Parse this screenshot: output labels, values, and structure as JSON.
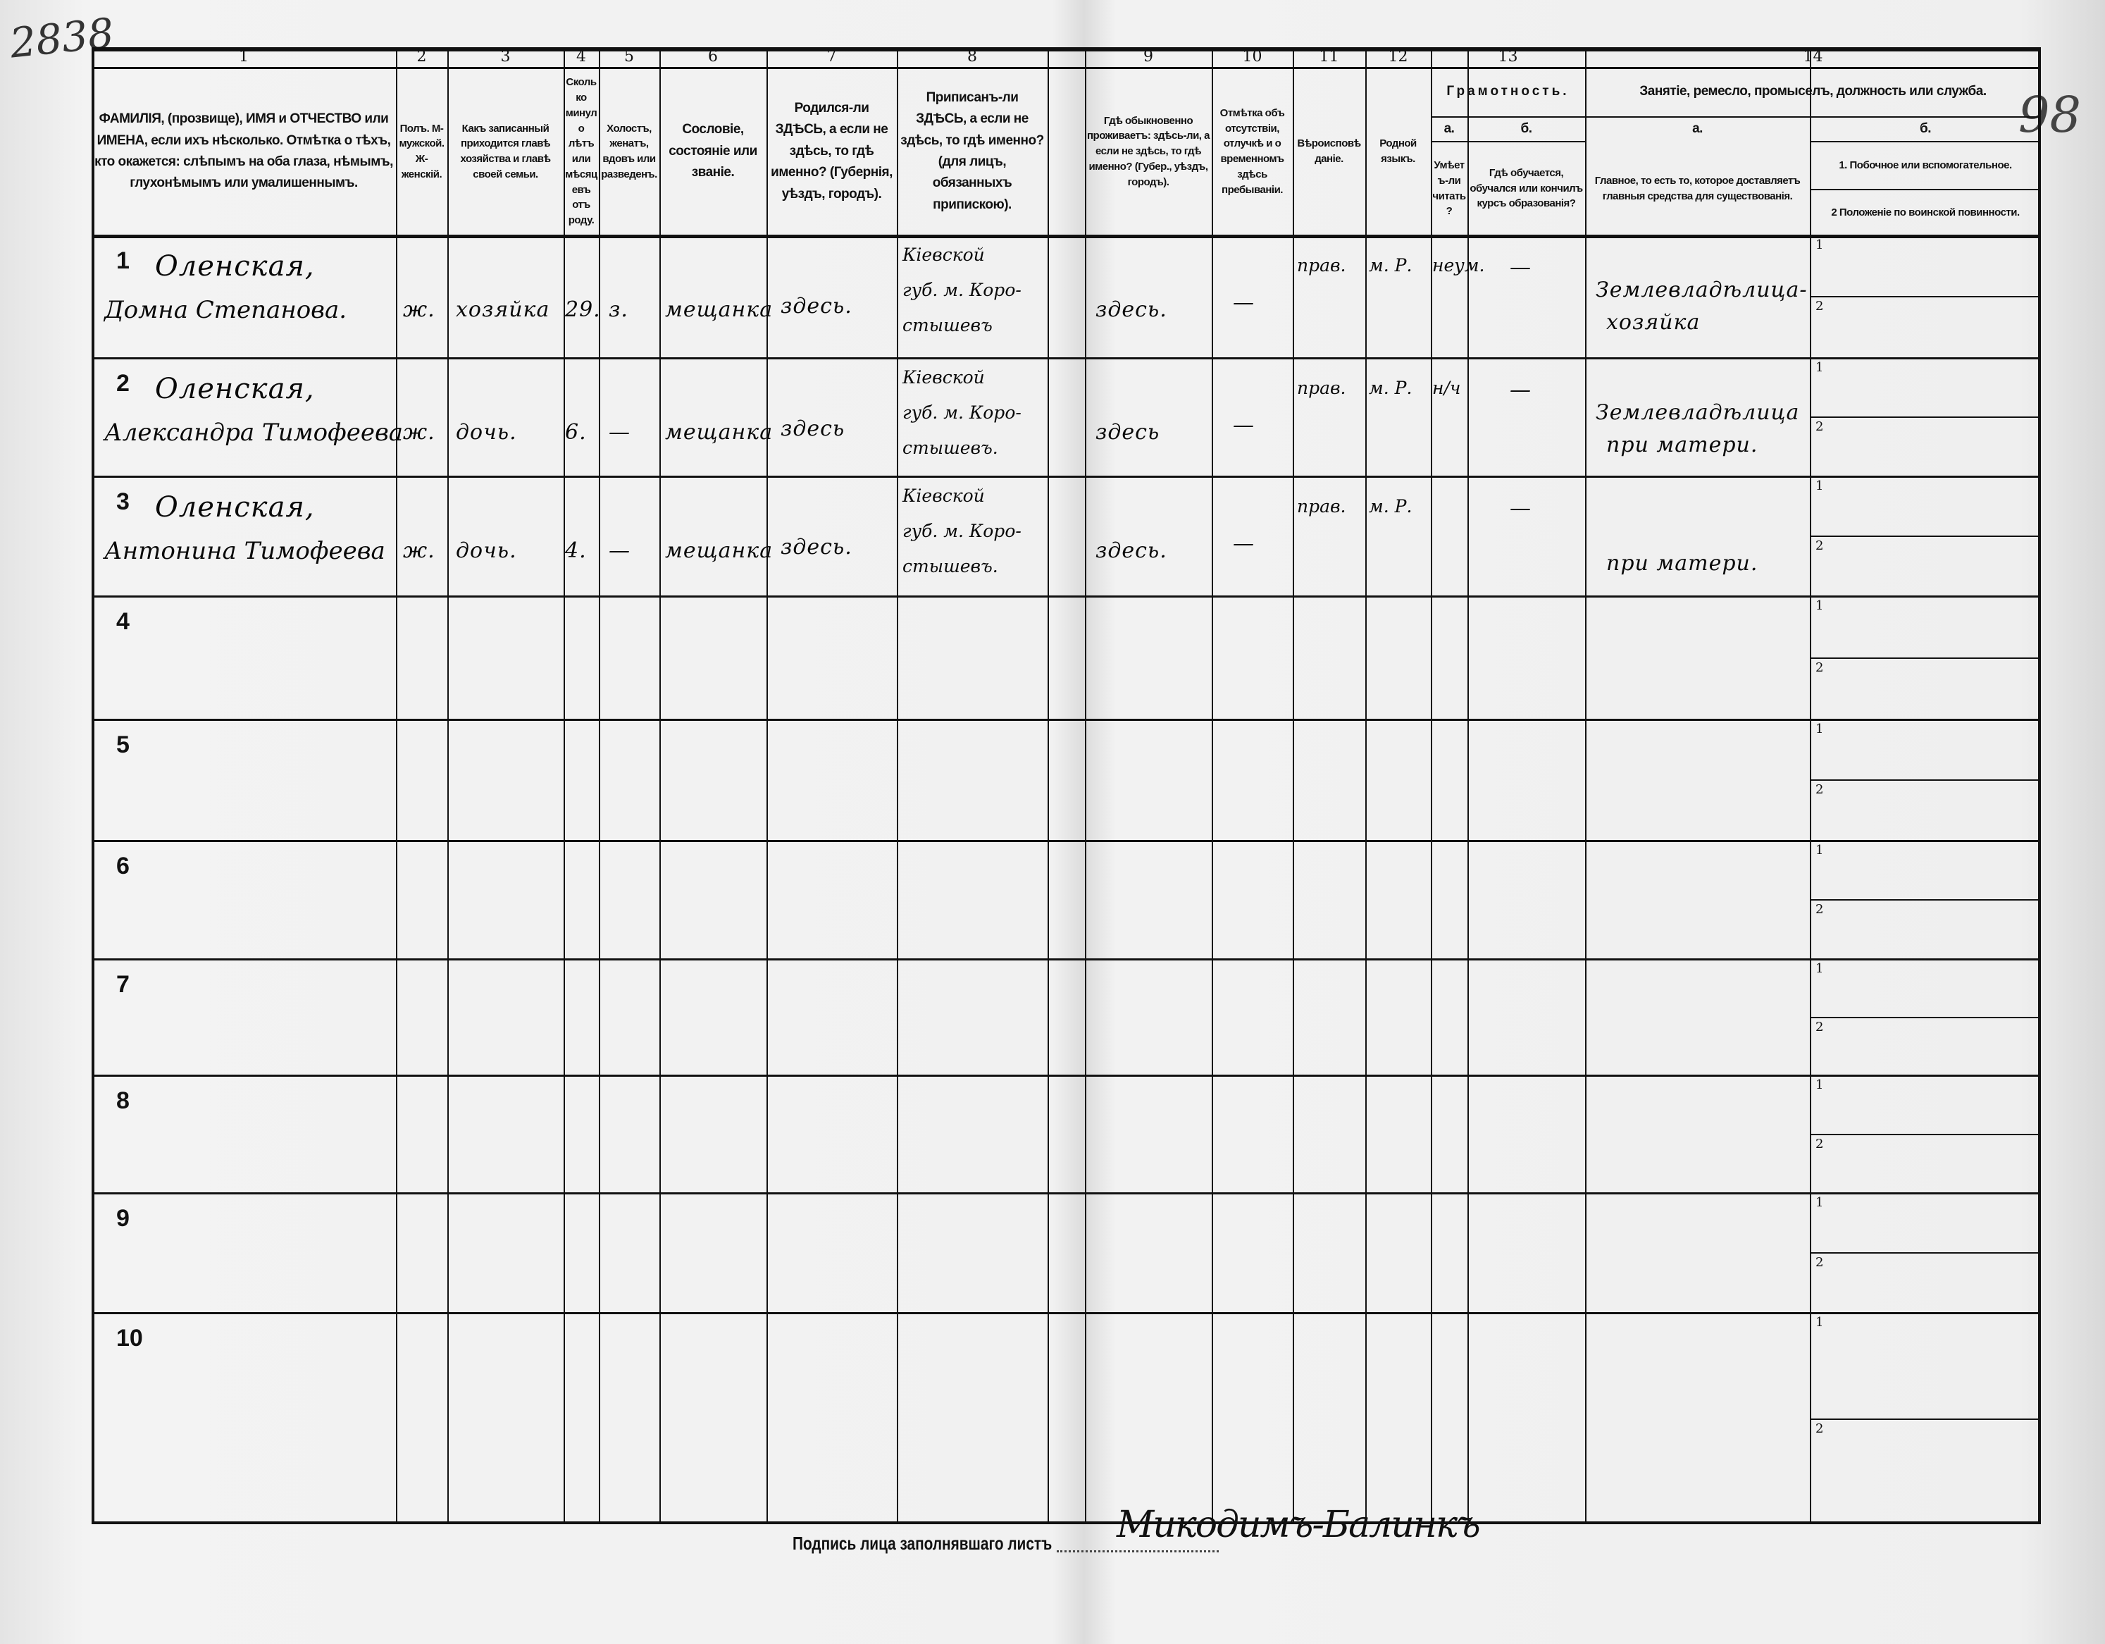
{
  "annotations": {
    "sheet_number": "2838",
    "page_number": "98"
  },
  "columns": [
    {
      "num": "1",
      "header": "ФАМИЛІЯ, (прозвище), ИМЯ и ОТЧЕСТВО или ИМЕНА, если ихъ нѣсколько. Отмѣтка о тѣхъ, кто окажется: слѣпымъ на оба глаза, нѣмымъ, глухонѣмымъ или умалишеннымъ."
    },
    {
      "num": "2",
      "header": "Полъ. М-мужской. Ж-женскій."
    },
    {
      "num": "3",
      "header": "Какъ записанный приходится главѣ хозяйства и главѣ своей семьи."
    },
    {
      "num": "4",
      "header": "Сколько минуло лѣтъ или мѣсяцевъ отъ роду."
    },
    {
      "num": "5",
      "header": "Холостъ, женатъ, вдовъ или разведенъ."
    },
    {
      "num": "6",
      "header": "Сословіе, состояніе или званіе."
    },
    {
      "num": "7",
      "header": "Родился-ли ЗДѢСЬ, а если не здѣсь, то гдѣ именно? (Губернія, уѣздъ, городъ)."
    },
    {
      "num": "8",
      "header": "Приписанъ-ли ЗДѢСЬ, а если не здѣсь, то гдѣ именно? (для лицъ, обязанныхъ припискою)."
    },
    {
      "num": "9",
      "header": "Гдѣ обыкновенно проживаетъ: здѣсь-ли, а если не здѣсь, то гдѣ именно? (Губер., уѣздъ, городъ)."
    },
    {
      "num": "10",
      "header": "Отмѣтка объ отсутствіи, отлучкѣ и о временномъ здѣсь пребываніи."
    },
    {
      "num": "11",
      "header": "Вѣроисповѣданіе."
    },
    {
      "num": "12",
      "header": "Родной языкъ."
    },
    {
      "num": "13",
      "header": "Грамотность.",
      "a_label": "а.",
      "a_header": "Умѣетъ-ли читать?",
      "b_label": "б.",
      "b_header": "Гдѣ обучается, обучался или кончилъ курсъ образованія?"
    },
    {
      "num": "14",
      "header": "Занятіе, ремесло, промыселъ, должность или служба.",
      "a_label": "а.",
      "a_header": "Главное, то есть то, которое доставляетъ главныя средства для существованія.",
      "b_label": "б.",
      "b_header_1": "1. Побочное или вспомогательное.",
      "b_header_2": "2 Положеніе по воинской повинности."
    }
  ],
  "rows": [
    {
      "num": "1",
      "surname": "Оленская,",
      "given": "Домна Степанова.",
      "sex": "ж.",
      "relation": "хозяйка",
      "age": "29.",
      "marital": "з.",
      "estate": "мещанка",
      "born": "здесь.",
      "registered_1": "Кіевской",
      "registered_2": "губ. м. Коро-",
      "registered_3": "стышевъ",
      "residence": "здесь.",
      "absence": "—",
      "religion": "прав.",
      "language": "м. Р.",
      "literacy_a": "неум.",
      "literacy_b": "—",
      "occupation_1": "Землевладѣлица-",
      "occupation_2": "хозяйка",
      "sub_1": "1",
      "sub_2": "2"
    },
    {
      "num": "2",
      "surname": "Оленская,",
      "given": "Александра Тимофеева",
      "sex": "ж.",
      "relation": "дочь.",
      "age": "6.",
      "marital": "—",
      "estate": "мещанка",
      "born": "здесь",
      "registered_1": "Кіевской",
      "registered_2": "губ. м. Коро-",
      "registered_3": "стышевъ.",
      "residence": "здесь",
      "absence": "—",
      "religion": "прав.",
      "language": "м. Р.",
      "literacy_a": "н/ч",
      "literacy_b": "—",
      "occupation_1": "Землевладѣлица",
      "occupation_2": "при матери.",
      "sub_1": "1",
      "sub_2": "2"
    },
    {
      "num": "3",
      "surname": "Оленская,",
      "given": "Антонина Тимофеева",
      "sex": "ж.",
      "relation": "дочь.",
      "age": "4.",
      "marital": "—",
      "estate": "мещанка",
      "born": "здесь.",
      "registered_1": "Кіевской",
      "registered_2": "губ. м. Коро-",
      "registered_3": "стышевъ.",
      "residence": "здесь.",
      "absence": "—",
      "religion": "прав.",
      "language": "м. Р.",
      "literacy_a": "",
      "literacy_b": "—",
      "occupation_1": "",
      "occupation_2": "при матери.",
      "sub_1": "1",
      "sub_2": "2"
    },
    {
      "num": "4",
      "sub_1": "1",
      "sub_2": "2"
    },
    {
      "num": "5",
      "sub_1": "1",
      "sub_2": "2"
    },
    {
      "num": "6",
      "sub_1": "1",
      "sub_2": "2"
    },
    {
      "num": "7",
      "sub_1": "1",
      "sub_2": "2"
    },
    {
      "num": "8",
      "sub_1": "1",
      "sub_2": "2"
    },
    {
      "num": "9",
      "sub_1": "1",
      "sub_2": "2"
    },
    {
      "num": "10",
      "sub_1": "1",
      "sub_2": "2"
    }
  ],
  "footer": {
    "signature_label": "Подпись лица заполнявшаго листъ",
    "signature": "Микодимъ-Балинкъ"
  }
}
